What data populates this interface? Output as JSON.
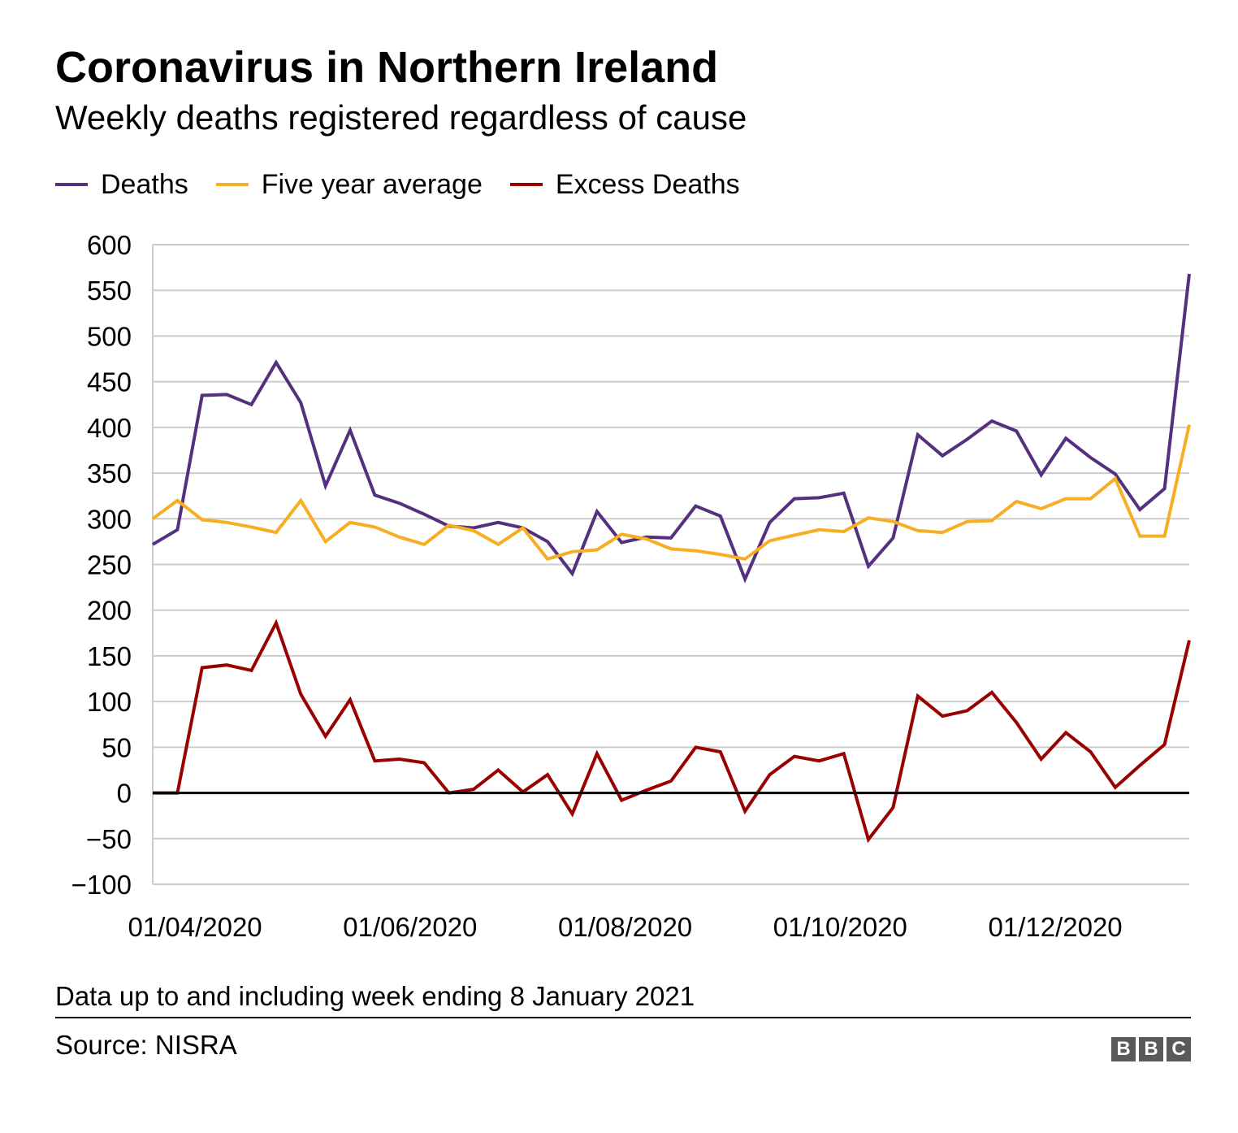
{
  "header": {
    "title": "Coronavirus in Northern Ireland",
    "subtitle": "Weekly deaths registered regardless of cause"
  },
  "footer": {
    "note": "Data up to and including week ending 8 January 2021",
    "source": "Source: NISRA",
    "logo": [
      "B",
      "B",
      "C"
    ]
  },
  "legend": [
    {
      "label": "Deaths",
      "color": "#55307f"
    },
    {
      "label": "Five year average",
      "color": "#f6ae23"
    },
    {
      "label": "Excess Deaths",
      "color": "#990000"
    }
  ],
  "chart_data": {
    "type": "line",
    "title": "Coronavirus in Northern Ireland",
    "subtitle": "Weekly deaths registered regardless of cause",
    "xlabel": "",
    "ylabel": "",
    "ylim": [
      -100,
      600
    ],
    "y_ticks": [
      600,
      550,
      500,
      450,
      400,
      350,
      300,
      250,
      200,
      150,
      100,
      50,
      0,
      -50,
      -100
    ],
    "y_tick_labels": [
      "600",
      "550",
      "500",
      "450",
      "400",
      "350",
      "300",
      "250",
      "200",
      "150",
      "100",
      "50",
      "0",
      "−50",
      "−100"
    ],
    "x_tick_labels": [
      {
        "label": "01/04/2020",
        "date": "2020-04-01"
      },
      {
        "label": "01/06/2020",
        "date": "2020-06-01"
      },
      {
        "label": "01/08/2020",
        "date": "2020-08-01"
      },
      {
        "label": "01/10/2020",
        "date": "2020-10-01"
      },
      {
        "label": "01/12/2020",
        "date": "2020-12-01"
      }
    ],
    "grid": true,
    "zero_line": true,
    "legend_position": "top-left",
    "x": [
      "2020-03-20",
      "2020-03-27",
      "2020-04-03",
      "2020-04-10",
      "2020-04-17",
      "2020-04-24",
      "2020-05-01",
      "2020-05-08",
      "2020-05-15",
      "2020-05-22",
      "2020-05-29",
      "2020-06-05",
      "2020-06-12",
      "2020-06-19",
      "2020-06-26",
      "2020-07-03",
      "2020-07-10",
      "2020-07-17",
      "2020-07-24",
      "2020-07-31",
      "2020-08-07",
      "2020-08-14",
      "2020-08-21",
      "2020-08-28",
      "2020-09-04",
      "2020-09-11",
      "2020-09-18",
      "2020-09-25",
      "2020-10-02",
      "2020-10-09",
      "2020-10-16",
      "2020-10-23",
      "2020-10-30",
      "2020-11-06",
      "2020-11-13",
      "2020-11-20",
      "2020-11-27",
      "2020-12-04",
      "2020-12-11",
      "2020-12-18",
      "2020-12-25",
      "2021-01-01",
      "2021-01-08"
    ],
    "series": [
      {
        "name": "Deaths",
        "color": "#55307f",
        "values": [
          272,
          288,
          435,
          436,
          425,
          471,
          427,
          336,
          397,
          326,
          317,
          305,
          292,
          290,
          296,
          290,
          275,
          240,
          308,
          274,
          280,
          279,
          314,
          303,
          234,
          296,
          322,
          323,
          328,
          248,
          279,
          392,
          369,
          387,
          407,
          396,
          348,
          388,
          367,
          349,
          310,
          333,
          568
        ]
      },
      {
        "name": "Five year average",
        "color": "#f6ae23",
        "values": [
          300,
          320,
          299,
          296,
          291,
          285,
          320,
          275,
          296,
          291,
          280,
          272,
          293,
          287,
          272,
          290,
          256,
          264,
          266,
          283,
          278,
          267,
          265,
          261,
          256,
          276,
          282,
          288,
          286,
          301,
          297,
          287,
          285,
          297,
          298,
          319,
          311,
          322,
          322,
          344,
          281,
          281,
          403
        ]
      },
      {
        "name": "Excess Deaths",
        "color": "#990000",
        "values": [
          0,
          0,
          137,
          140,
          134,
          186,
          108,
          62,
          102,
          35,
          37,
          33,
          0,
          4,
          25,
          1,
          20,
          -23,
          43,
          -8,
          3,
          13,
          50,
          45,
          -20,
          20,
          40,
          35,
          43,
          -51,
          -16,
          106,
          84,
          90,
          110,
          77,
          37,
          66,
          45,
          6,
          30,
          53,
          167
        ]
      }
    ]
  }
}
